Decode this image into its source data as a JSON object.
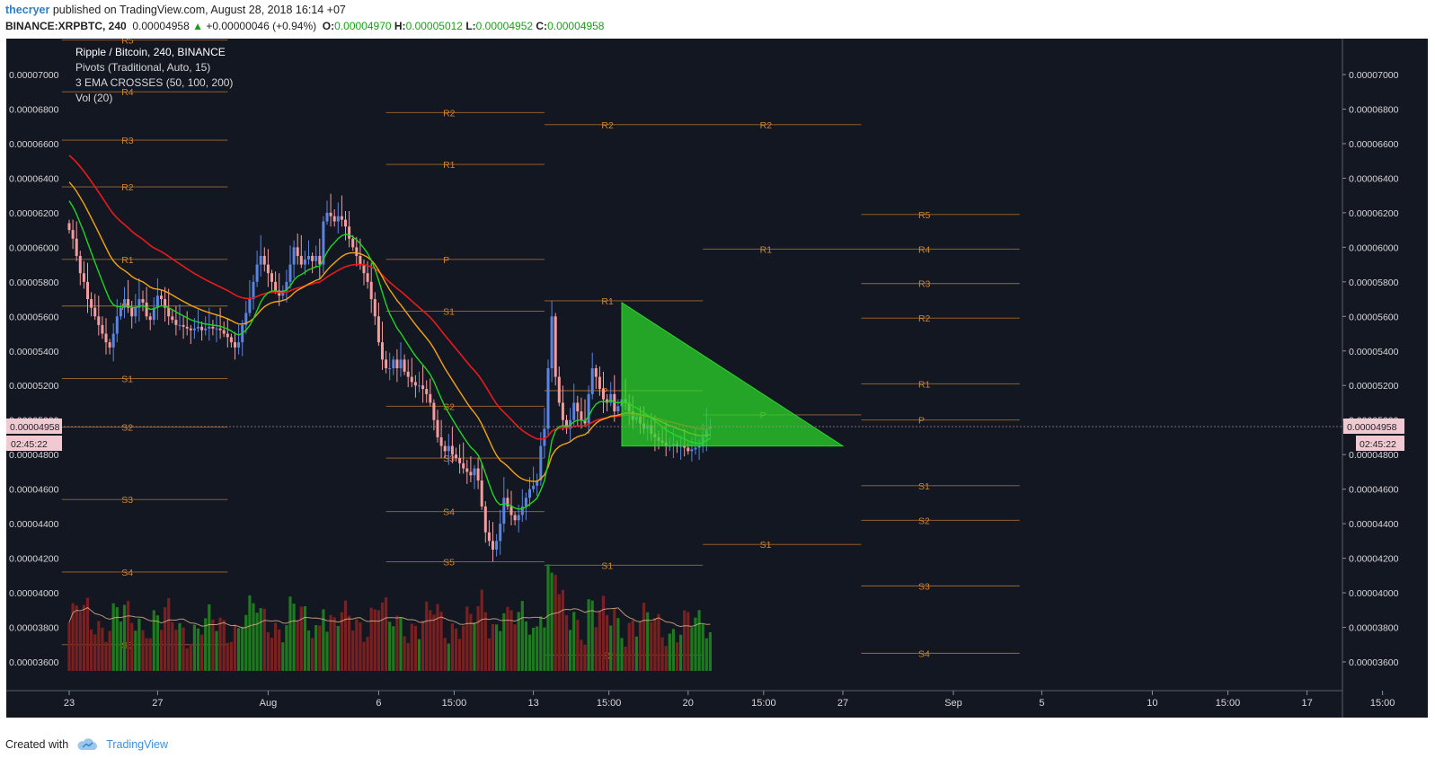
{
  "header": {
    "author": "thecryer",
    "published_text": "published on TradingView.com, August 28, 2018 16:14 +07",
    "symbol": "BINANCE:XRPBTC, 240",
    "last": "0.00004958",
    "change_arrow": "▲",
    "change": "+0.00000046 (+0.94%)",
    "open_label": "O:",
    "open": "0.00004970",
    "high_label": "H:",
    "high": "0.00005012",
    "low_label": "L:",
    "low": "0.00004952",
    "close_label": "C:",
    "close": "0.00004958"
  },
  "legend": {
    "line1": "Ripple / Bitcoin, 240, BINANCE",
    "line2": "Pivots (Traditional, Auto, 15)",
    "line3": "3 EMA CROSSES (50, 100, 200)",
    "line4": "Vol (20)"
  },
  "price_tag": {
    "value": "0.00004958",
    "countdown": "02:45:22"
  },
  "footer": {
    "created_with": "Created with",
    "brand": "TradingView"
  },
  "colors": {
    "background": "#131722",
    "up": "#5b84e0",
    "down": "#f59c9c",
    "ema50": "#22d422",
    "ema100": "#f4a21a",
    "ema200": "#e81a1a",
    "pivot": "#d2832f",
    "triangle": "#2bd62b",
    "vol_up": "#1e7a1e",
    "vol_down": "#7a2020"
  },
  "chart_data": {
    "type": "candlestick",
    "title": "Ripple / Bitcoin, 240, BINANCE",
    "interval": "240",
    "y_range": [
      3.42e-05,
      7.22e-05
    ],
    "y_ticks": [
      "0.00003600",
      "0.00003800",
      "0.00004000",
      "0.00004200",
      "0.00004400",
      "0.00004600",
      "0.00004800",
      "0.00005000",
      "0.00005200",
      "0.00005400",
      "0.00005600",
      "0.00005800",
      "0.00006000",
      "0.00006200",
      "0.00006400",
      "0.00006600",
      "0.00006800",
      "0.00007000"
    ],
    "x_ticks": [
      {
        "label": "23",
        "t": 0
      },
      {
        "label": "27",
        "t": 24
      },
      {
        "label": "Aug",
        "t": 54
      },
      {
        "label": "6",
        "t": 84
      },
      {
        "label": "15:00",
        "t": 104.5
      },
      {
        "label": "13",
        "t": 126
      },
      {
        "label": "15:00",
        "t": 146.5
      },
      {
        "label": "20",
        "t": 168
      },
      {
        "label": "15:00",
        "t": 188.5
      },
      {
        "label": "27",
        "t": 210
      },
      {
        "label": "Sep",
        "t": 240
      },
      {
        "label": "5",
        "t": 264
      },
      {
        "label": "10",
        "t": 294
      },
      {
        "label": "15:00",
        "t": 314.5
      },
      {
        "label": "17",
        "t": 336
      },
      {
        "label": "15:00",
        "t": 356.5
      }
    ],
    "closes": [
      6.1,
      6.05,
      5.95,
      5.85,
      5.8,
      5.7,
      5.65,
      5.6,
      5.55,
      5.5,
      5.45,
      5.42,
      5.5,
      5.6,
      5.65,
      5.7,
      5.65,
      5.6,
      5.65,
      5.7,
      5.68,
      5.6,
      5.58,
      5.65,
      5.72,
      5.7,
      5.65,
      5.6,
      5.58,
      5.55,
      5.55,
      5.54,
      5.53,
      5.52,
      5.53,
      5.54,
      5.52,
      5.53,
      5.54,
      5.53,
      5.53,
      5.52,
      5.5,
      5.48,
      5.45,
      5.42,
      5.45,
      5.55,
      5.62,
      5.7,
      5.8,
      5.9,
      5.95,
      5.9,
      5.85,
      5.8,
      5.75,
      5.72,
      5.75,
      5.8,
      5.9,
      6.0,
      5.95,
      5.9,
      5.93,
      5.95,
      5.92,
      5.95,
      5.9,
      6.15,
      6.2,
      6.18,
      6.15,
      6.18,
      6.16,
      6.12,
      6.05,
      6.0,
      5.95,
      5.9,
      5.85,
      5.8,
      5.7,
      5.6,
      5.45,
      5.35,
      5.3,
      5.3,
      5.35,
      5.3,
      5.35,
      5.28,
      5.25,
      5.22,
      5.2,
      5.2,
      5.18,
      5.15,
      5.1,
      5.0,
      4.9,
      4.85,
      4.82,
      4.85,
      4.8,
      4.78,
      4.75,
      4.72,
      4.7,
      4.68,
      4.72,
      4.65,
      4.5,
      4.35,
      4.3,
      4.25,
      4.3,
      4.4,
      4.55,
      4.5,
      4.45,
      4.42,
      4.45,
      4.5,
      4.55,
      4.6,
      4.62,
      4.65,
      4.85,
      4.95,
      5.3,
      5.6,
      5.25,
      5.1,
      5.0,
      4.95,
      5.0,
      5.1,
      5.05,
      5.0,
      4.98,
      5.15,
      5.3,
      5.25,
      5.18,
      5.12,
      5.1,
      5.15,
      5.05,
      5.08,
      5.12,
      5.1,
      5.05,
      5.0,
      5.02,
      4.98,
      4.95,
      4.97,
      4.92,
      4.9,
      4.88,
      4.87,
      4.85,
      4.85,
      4.86,
      4.85,
      4.85,
      4.84,
      4.82,
      4.83,
      4.84,
      4.85,
      4.9,
      4.95,
      4.96
    ],
    "triangle": [
      {
        "t": 150,
        "p": 5.68e-05
      },
      {
        "t": 150,
        "p": 4.85e-05
      },
      {
        "t": 210,
        "p": 4.85e-05
      }
    ],
    "pivot_segments": [
      {
        "t0": -2,
        "t1": 43,
        "levels": [
          [
            "R5",
            7.2
          ],
          [
            "R4",
            6.9
          ],
          [
            "R3",
            6.62
          ],
          [
            "R2",
            6.35
          ],
          [
            "R1",
            5.93
          ],
          [
            "P",
            5.66
          ],
          [
            "S1",
            5.24
          ],
          [
            "S2",
            4.96
          ],
          [
            "S3",
            4.54
          ],
          [
            "S4",
            4.12
          ],
          [
            "S5",
            3.7
          ]
        ]
      },
      {
        "t0": 86,
        "t1": 129,
        "levels": [
          [
            "R2",
            6.78
          ],
          [
            "R1",
            6.48
          ],
          [
            "P",
            5.93
          ],
          [
            "S1",
            5.63
          ],
          [
            "S2",
            5.08
          ],
          [
            "S3",
            4.78
          ],
          [
            "S4",
            4.47
          ],
          [
            "S5",
            4.18
          ]
        ]
      },
      {
        "t0": 129,
        "t1": 172,
        "levels": [
          [
            "R2",
            6.71
          ],
          [
            "R1",
            5.69
          ],
          [
            "P",
            5.17
          ],
          [
            "S1",
            4.16
          ],
          [
            "S2",
            3.64
          ]
        ]
      },
      {
        "t0": 172,
        "t1": 215,
        "levels": [
          [
            "R2",
            6.71
          ],
          [
            "R1",
            5.99
          ],
          [
            "P",
            5.03
          ],
          [
            "S1",
            4.28
          ]
        ]
      },
      {
        "t0": 215,
        "t1": 258,
        "levels": [
          [
            "R5",
            6.19
          ],
          [
            "R4",
            5.99
          ],
          [
            "R3",
            5.79
          ],
          [
            "R2",
            5.59
          ],
          [
            "R1",
            5.21
          ],
          [
            "P",
            5.0
          ],
          [
            "S1",
            4.62
          ],
          [
            "S2",
            4.42
          ],
          [
            "S3",
            4.04
          ],
          [
            "S4",
            3.65
          ]
        ]
      }
    ]
  }
}
